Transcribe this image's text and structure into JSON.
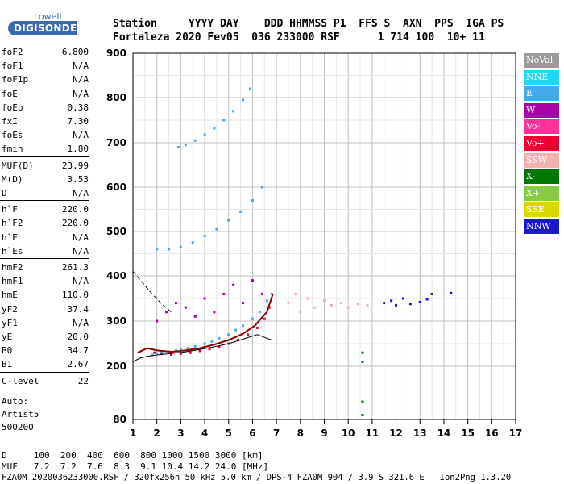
{
  "logo": {
    "top": "Lowell",
    "bottom": "DIGISONDE",
    "bg": "#3d6bb0"
  },
  "header": {
    "line1": "Station     YYYY DAY    DDD HHMMSS P1  FFS S  AXN  PPS  IGA PS",
    "line2": "Fortaleza 2020 Fev05  036 233000 RSF      1 714 100  10+ 11"
  },
  "params": {
    "group1": [
      {
        "label": "foF2",
        "value": "6.800"
      },
      {
        "label": "foF1",
        "value": "N/A"
      },
      {
        "label": "foF1p",
        "value": "N/A"
      },
      {
        "label": "foE",
        "value": "N/A"
      },
      {
        "label": "foEp",
        "value": "0.38"
      },
      {
        "label": "fxI",
        "value": "7.30"
      },
      {
        "label": "foEs",
        "value": "N/A"
      },
      {
        "label": "fmin",
        "value": "1.80"
      }
    ],
    "group2": [
      {
        "label": "MUF(D)",
        "value": "23.99"
      },
      {
        "label": "M(D)",
        "value": "3.53"
      },
      {
        "label": "D",
        "value": "N/A"
      }
    ],
    "group3": [
      {
        "label": "h`F",
        "value": "220.0"
      },
      {
        "label": "h`F2",
        "value": "220.0"
      },
      {
        "label": "h`E",
        "value": "N/A"
      },
      {
        "label": "h`Es",
        "value": "N/A"
      }
    ],
    "group4": [
      {
        "label": "hmF2",
        "value": "261.3"
      },
      {
        "label": "hmF1",
        "value": "N/A"
      },
      {
        "label": "hmE",
        "value": "110.0"
      },
      {
        "label": "yF2",
        "value": "37.4"
      },
      {
        "label": "yF1",
        "value": "N/A"
      },
      {
        "label": "yE",
        "value": "20.0"
      },
      {
        "label": "B0",
        "value": "34.7"
      },
      {
        "label": "B1",
        "value": "2.67"
      }
    ],
    "group5": [
      {
        "label": "C-level",
        "value": "22"
      }
    ],
    "auto": [
      "Auto:",
      "Artist5",
      "500200"
    ]
  },
  "legend": [
    {
      "label": "NoVal",
      "color": "#9a9a9a"
    },
    {
      "label": "NNE",
      "color": "#20d8f8"
    },
    {
      "label": "E",
      "color": "#44aaee"
    },
    {
      "label": "W",
      "color": "#aa00aa"
    },
    {
      "label": "Vo-",
      "color": "#ff3399"
    },
    {
      "label": "Vo+",
      "color": "#ee0033"
    },
    {
      "label": "SSW",
      "color": "#f5b0b0"
    },
    {
      "label": "X-",
      "color": "#007700"
    },
    {
      "label": "X+",
      "color": "#88cc44"
    },
    {
      "label": "SSE",
      "color": "#d8d800"
    },
    {
      "label": "NNW",
      "color": "#1a1acc"
    }
  ],
  "chart_data": {
    "type": "scatter",
    "x_ticks": [
      "1",
      "2",
      "3",
      "4",
      "5",
      "6",
      "7",
      "8",
      "9",
      "10",
      "11",
      "12",
      "13",
      "14",
      "15",
      "16",
      "17"
    ],
    "y_ticks": [
      "80",
      "200",
      "300",
      "400",
      "500",
      "600",
      "700",
      "800",
      "900"
    ],
    "xlim": [
      1,
      17
    ],
    "ylim_virtual": [
      80,
      900
    ],
    "grid": true,
    "series": [
      {
        "mode": "E",
        "x": [
          1.8,
          2.0,
          2.2,
          2.5,
          2.8,
          3.0,
          3.3,
          3.6,
          4.0,
          4.3,
          4.6,
          5.0,
          5.3,
          5.6,
          6.0,
          6.3,
          6.6,
          6.8
        ],
        "y": [
          225,
          228,
          230,
          232,
          235,
          238,
          240,
          244,
          250,
          255,
          262,
          270,
          280,
          290,
          305,
          320,
          345,
          360
        ]
      },
      {
        "mode": "Vo+",
        "x": [
          1.9,
          2.2,
          2.6,
          3.0,
          3.4,
          3.8,
          4.2,
          4.6,
          5.0,
          5.4,
          5.8,
          6.2,
          6.5,
          6.7
        ],
        "y": [
          230,
          228,
          226,
          228,
          230,
          234,
          238,
          242,
          250,
          258,
          270,
          285,
          305,
          330
        ]
      },
      {
        "mode": "W",
        "x": [
          2.0,
          2.4,
          2.8,
          3.2,
          3.6,
          4.0,
          4.4,
          4.8,
          5.2,
          5.6,
          6.0,
          6.4
        ],
        "y": [
          300,
          320,
          340,
          330,
          310,
          350,
          320,
          360,
          380,
          340,
          390,
          360
        ]
      },
      {
        "mode": "SSW",
        "x": [
          7.5,
          7.8,
          8.0,
          8.3,
          8.6,
          9.0,
          9.3,
          9.7,
          10.0,
          10.4,
          10.8
        ],
        "y": [
          340,
          360,
          320,
          350,
          330,
          345,
          335,
          340,
          330,
          338,
          335
        ]
      },
      {
        "mode": "NNW",
        "x": [
          11.5,
          11.8,
          12.0,
          12.3,
          12.6,
          13.0,
          13.3,
          13.5,
          14.3
        ],
        "y": [
          340,
          345,
          335,
          350,
          338,
          342,
          348,
          360,
          362
        ]
      },
      {
        "mode": "E",
        "x": [
          2.0,
          2.5,
          3.0,
          3.5,
          4.0,
          4.5,
          5.0,
          5.5,
          6.0,
          6.4
        ],
        "y": [
          460,
          460,
          465,
          475,
          490,
          505,
          525,
          545,
          570,
          600
        ]
      },
      {
        "mode": "E",
        "x": [
          2.9,
          3.2,
          3.6,
          4.0,
          4.4,
          4.8,
          5.2,
          5.6,
          5.9
        ],
        "y": [
          690,
          695,
          705,
          718,
          732,
          750,
          770,
          795,
          820
        ]
      },
      {
        "mode": "X-",
        "x": [
          10.6,
          10.6,
          10.6,
          10.6
        ],
        "y": [
          210,
          230,
          120,
          90
        ]
      }
    ],
    "profile": {
      "x": [
        1.2,
        1.6,
        2.0,
        2.6,
        3.2,
        3.8,
        4.4,
        5.0,
        5.6,
        6.1,
        6.6,
        6.85
      ],
      "y": [
        230,
        240,
        235,
        232,
        235,
        240,
        248,
        258,
        272,
        290,
        320,
        360
      ]
    },
    "extrapolated": {
      "x": [
        1.0,
        1.3,
        1.6,
        2.0,
        2.6,
        3.2,
        3.8,
        4.4,
        5.0,
        5.6,
        6.2,
        6.6,
        6.8
      ],
      "y": [
        210,
        218,
        222,
        225,
        228,
        232,
        237,
        243,
        250,
        260,
        270,
        262,
        258
      ]
    },
    "dashed": {
      "x": [
        1.0,
        1.4,
        1.8,
        2.2,
        2.6
      ],
      "y": [
        410,
        385,
        360,
        338,
        320
      ]
    }
  },
  "footer": {
    "line1": "D     100  200  400  600  800 1000 1500 3000 [km]",
    "line2": "MUF   7.2  7.2  7.6  8.3  9.1 10.4 14.2 24.0 [MHz]",
    "line3": "FZA0M_2020036233000.RSF / 320fx256h 50 kHz 5.0 km / DPS-4 FZA0M 904 / 3.9 S 321.6 E   Ion2Png 1.3.20"
  }
}
